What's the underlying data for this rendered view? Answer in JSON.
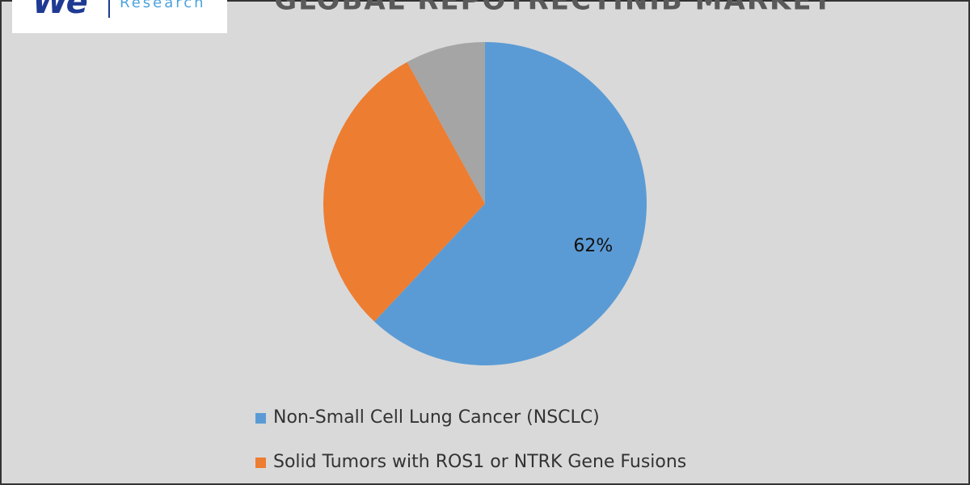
{
  "logo": {
    "mark": "We",
    "text": "Research"
  },
  "chart_data": {
    "type": "pie",
    "title": "GLOBAL REPOTRECTINIB MARKET",
    "categories": [
      "Non-Small Cell Lung Cancer (NSCLC)",
      "Solid Tumors with ROS1 or NTRK Gene Fusions",
      null
    ],
    "values": [
      62,
      30,
      8
    ],
    "value_labels": [
      "62%",
      null,
      null
    ],
    "colors": [
      "#5b9bd5",
      "#ed7d31",
      "#a5a5a5"
    ]
  }
}
